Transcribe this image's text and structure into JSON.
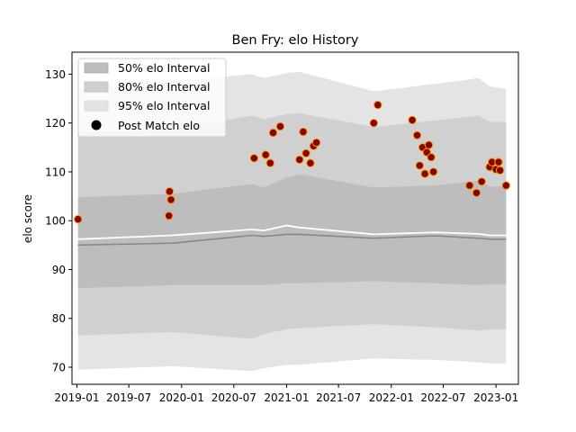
{
  "chart_data": {
    "type": "line",
    "title": "Ben Fry: elo History",
    "xlabel": "",
    "ylabel": "elo score",
    "xlim": [
      "2018-12-15",
      "2023-03-20"
    ],
    "ylim": [
      66.5,
      134.5
    ],
    "x_ticks": [
      "2019-01",
      "2019-07",
      "2020-01",
      "2020-07",
      "2021-01",
      "2021-07",
      "2022-01",
      "2022-07",
      "2023-01"
    ],
    "y_ticks": [
      70,
      80,
      90,
      100,
      110,
      120,
      130
    ],
    "grid": false,
    "legend": {
      "position": "top-left",
      "entries": [
        "50% elo Interval",
        "80% elo Interval",
        "95% elo Interval",
        "Post Match elo"
      ]
    },
    "colors": {
      "band50": "#bdbdbd",
      "band80": "#d0d0d0",
      "band95": "#e4e4e4",
      "mean_line": "#888888",
      "post_line": "#ffffff",
      "point_fill": "#8b0000",
      "point_edge": "#f0a000"
    },
    "bands": {
      "dates": [
        "2019-01-05",
        "2019-12-01",
        "2020-09-01",
        "2020-10-15",
        "2021-01-01",
        "2021-02-15",
        "2021-11-01",
        "2022-06-01",
        "2022-11-01",
        "2022-12-10",
        "2023-02-05"
      ],
      "p95_low": [
        69.5,
        70.2,
        69.2,
        69.8,
        70.5,
        70.5,
        71.8,
        71.5,
        71.0,
        70.8,
        70.8
      ],
      "p95_high": [
        127.0,
        128.5,
        130.0,
        129.2,
        130.2,
        130.5,
        126.5,
        128.0,
        129.2,
        127.5,
        127.0
      ],
      "p80_low": [
        76.5,
        77.2,
        75.8,
        76.8,
        77.8,
        78.0,
        78.8,
        78.2,
        77.5,
        77.8,
        77.8
      ],
      "p80_high": [
        118.0,
        118.8,
        121.5,
        120.8,
        121.8,
        122.0,
        119.2,
        120.5,
        121.5,
        120.2,
        120.2
      ],
      "p50_low": [
        86.2,
        86.8,
        86.8,
        86.8,
        87.2,
        87.2,
        87.6,
        87.2,
        86.8,
        87.0,
        87.0
      ],
      "p50_high": [
        104.8,
        105.5,
        107.5,
        106.8,
        108.8,
        109.5,
        106.8,
        107.2,
        108.2,
        107.0,
        107.0
      ]
    },
    "series": [
      {
        "name": "mean",
        "x": [
          "2019-01-05",
          "2019-12-01",
          "2020-09-01",
          "2020-10-15",
          "2021-01-01",
          "2021-02-15",
          "2021-11-01",
          "2022-06-01",
          "2022-11-01",
          "2022-12-10",
          "2023-02-05"
        ],
        "y": [
          95.0,
          95.4,
          97.0,
          96.8,
          97.2,
          97.2,
          96.4,
          96.9,
          96.4,
          96.2,
          96.2
        ]
      },
      {
        "name": "post",
        "x": [
          "2019-01-05",
          "2019-12-01",
          "2020-09-01",
          "2020-10-15",
          "2021-01-01",
          "2021-02-15",
          "2021-11-01",
          "2022-06-01",
          "2022-11-01",
          "2022-12-10",
          "2023-02-05"
        ],
        "y": [
          96.2,
          97.0,
          98.2,
          98.0,
          99.0,
          98.6,
          97.2,
          97.6,
          97.3,
          97.0,
          97.0
        ]
      }
    ],
    "points": {
      "name": "Post Match elo",
      "x": [
        "2019-01-05",
        "2019-11-18",
        "2019-11-20",
        "2019-11-25",
        "2020-09-10",
        "2020-10-20",
        "2020-11-05",
        "2020-11-15",
        "2020-12-10",
        "2021-02-15",
        "2021-02-28",
        "2021-03-10",
        "2021-03-25",
        "2021-04-05",
        "2021-04-15",
        "2021-11-01",
        "2021-11-15",
        "2022-03-15",
        "2022-04-01",
        "2022-04-10",
        "2022-04-20",
        "2022-04-28",
        "2022-05-05",
        "2022-05-12",
        "2022-05-20",
        "2022-05-28",
        "2022-10-01",
        "2022-10-25",
        "2022-11-12",
        "2022-12-10",
        "2022-12-18",
        "2023-01-01",
        "2023-01-10",
        "2023-01-15",
        "2023-02-05"
      ],
      "y": [
        100.3,
        101.0,
        106.0,
        104.3,
        112.8,
        113.5,
        111.8,
        118.0,
        119.3,
        112.5,
        118.2,
        113.8,
        111.8,
        115.3,
        116.0,
        120.0,
        123.7,
        120.6,
        117.5,
        111.3,
        115.0,
        109.6,
        114.0,
        115.5,
        113.0,
        110.0,
        107.2,
        105.7,
        108.0,
        111.0,
        112.0,
        110.5,
        112.0,
        110.3,
        107.2
      ]
    }
  }
}
